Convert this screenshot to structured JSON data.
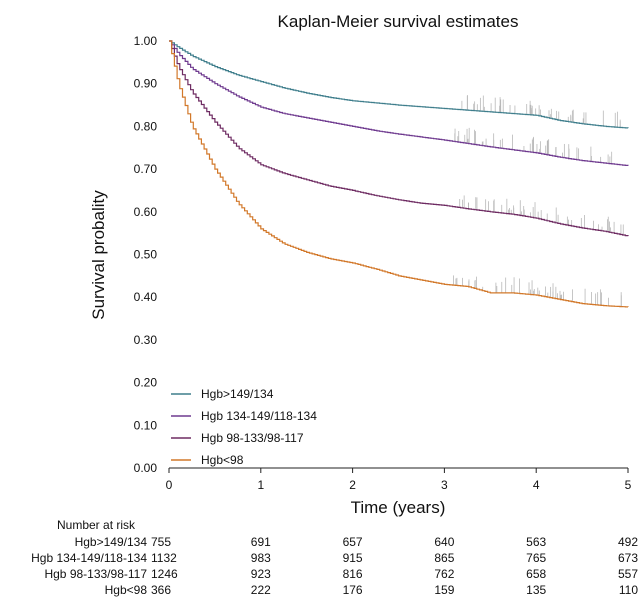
{
  "chart_data": {
    "type": "line",
    "title": "Kaplan-Meier survival estimates",
    "xlabel": "Time (years)",
    "ylabel": "Survival probality",
    "xlim": [
      0,
      5
    ],
    "ylim": [
      0,
      1
    ],
    "x_ticks": [
      "0",
      "1",
      "2",
      "3",
      "4",
      "5"
    ],
    "y_ticks": [
      "0.00",
      "0.10",
      "0.20",
      "0.30",
      "0.40",
      "0.50",
      "0.60",
      "0.70",
      "0.80",
      "0.90",
      "1.00"
    ],
    "grid": false,
    "legend_position": "bottom-left",
    "series": [
      {
        "name": "Hgb>149/134",
        "color": "#3f7e8c",
        "points": [
          [
            0,
            1.0
          ],
          [
            0.1,
            0.985
          ],
          [
            0.25,
            0.965
          ],
          [
            0.5,
            0.94
          ],
          [
            0.75,
            0.92
          ],
          [
            1.0,
            0.905
          ],
          [
            1.25,
            0.89
          ],
          [
            1.5,
            0.878
          ],
          [
            1.75,
            0.868
          ],
          [
            2.0,
            0.86
          ],
          [
            2.25,
            0.855
          ],
          [
            2.5,
            0.85
          ],
          [
            2.75,
            0.846
          ],
          [
            3.0,
            0.842
          ],
          [
            3.25,
            0.838
          ],
          [
            3.5,
            0.834
          ],
          [
            3.75,
            0.83
          ],
          [
            4.0,
            0.826
          ],
          [
            4.25,
            0.814
          ],
          [
            4.5,
            0.806
          ],
          [
            4.75,
            0.8
          ],
          [
            5.0,
            0.796
          ]
        ]
      },
      {
        "name": "Hgb 134-149/118-134",
        "color": "#6f3a8f",
        "points": [
          [
            0,
            1.0
          ],
          [
            0.1,
            0.97
          ],
          [
            0.25,
            0.935
          ],
          [
            0.5,
            0.9
          ],
          [
            0.75,
            0.87
          ],
          [
            1.0,
            0.845
          ],
          [
            1.25,
            0.83
          ],
          [
            1.5,
            0.82
          ],
          [
            1.75,
            0.81
          ],
          [
            2.0,
            0.8
          ],
          [
            2.25,
            0.79
          ],
          [
            2.5,
            0.782
          ],
          [
            2.75,
            0.775
          ],
          [
            3.0,
            0.768
          ],
          [
            3.25,
            0.76
          ],
          [
            3.5,
            0.752
          ],
          [
            3.75,
            0.745
          ],
          [
            4.0,
            0.738
          ],
          [
            4.25,
            0.728
          ],
          [
            4.5,
            0.72
          ],
          [
            4.75,
            0.714
          ],
          [
            5.0,
            0.708
          ]
        ]
      },
      {
        "name": "Hgb 98-133/98-117",
        "color": "#6e2b62",
        "points": [
          [
            0,
            1.0
          ],
          [
            0.1,
            0.94
          ],
          [
            0.25,
            0.88
          ],
          [
            0.5,
            0.81
          ],
          [
            0.75,
            0.75
          ],
          [
            1.0,
            0.71
          ],
          [
            1.25,
            0.69
          ],
          [
            1.5,
            0.675
          ],
          [
            1.75,
            0.66
          ],
          [
            2.0,
            0.65
          ],
          [
            2.25,
            0.638
          ],
          [
            2.5,
            0.628
          ],
          [
            2.75,
            0.62
          ],
          [
            3.0,
            0.615
          ],
          [
            3.25,
            0.607
          ],
          [
            3.5,
            0.6
          ],
          [
            3.75,
            0.594
          ],
          [
            4.0,
            0.585
          ],
          [
            4.25,
            0.572
          ],
          [
            4.5,
            0.562
          ],
          [
            4.75,
            0.554
          ],
          [
            5.0,
            0.543
          ]
        ]
      },
      {
        "name": "Hgb<98",
        "color": "#d2782a",
        "points": [
          [
            0,
            1.0
          ],
          [
            0.1,
            0.9
          ],
          [
            0.25,
            0.8
          ],
          [
            0.5,
            0.7
          ],
          [
            0.75,
            0.62
          ],
          [
            1.0,
            0.56
          ],
          [
            1.25,
            0.525
          ],
          [
            1.5,
            0.505
          ],
          [
            1.75,
            0.49
          ],
          [
            2.0,
            0.48
          ],
          [
            2.25,
            0.466
          ],
          [
            2.5,
            0.45
          ],
          [
            2.75,
            0.44
          ],
          [
            3.0,
            0.43
          ],
          [
            3.25,
            0.425
          ],
          [
            3.5,
            0.41
          ],
          [
            3.75,
            0.41
          ],
          [
            4.0,
            0.405
          ],
          [
            4.25,
            0.395
          ],
          [
            4.5,
            0.385
          ],
          [
            4.75,
            0.38
          ],
          [
            5.0,
            0.377
          ]
        ]
      }
    ],
    "censor_from_x": 3.1,
    "risk_table": {
      "header": "Number at risk",
      "times": [
        0,
        1,
        2,
        3,
        4,
        5
      ],
      "rows": [
        {
          "label": "Hgb>149/134",
          "counts": [
            "755",
            "691",
            "657",
            "640",
            "563",
            "492"
          ]
        },
        {
          "label": "Hgb 134-149/118-134",
          "counts": [
            "1132",
            "983",
            "915",
            "865",
            "765",
            "673"
          ]
        },
        {
          "label": "Hgb 98-133/98-117",
          "counts": [
            "1246",
            "923",
            "816",
            "762",
            "658",
            "557"
          ]
        },
        {
          "label": "Hgb<98",
          "counts": [
            "366",
            "222",
            "176",
            "159",
            "135",
            "110"
          ]
        }
      ]
    }
  }
}
